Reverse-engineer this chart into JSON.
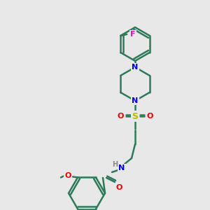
{
  "background_color": "#e8e8e8",
  "bond_color": "#2d7a5a",
  "bond_width": 1.8,
  "atom_colors": {
    "F": "#ff00cc",
    "N": "#0000ee",
    "O": "#ee0000",
    "S": "#bbbb00",
    "H": "#888888",
    "C": "#2d7a5a"
  },
  "figsize": [
    3.0,
    3.0
  ],
  "dpi": 100
}
